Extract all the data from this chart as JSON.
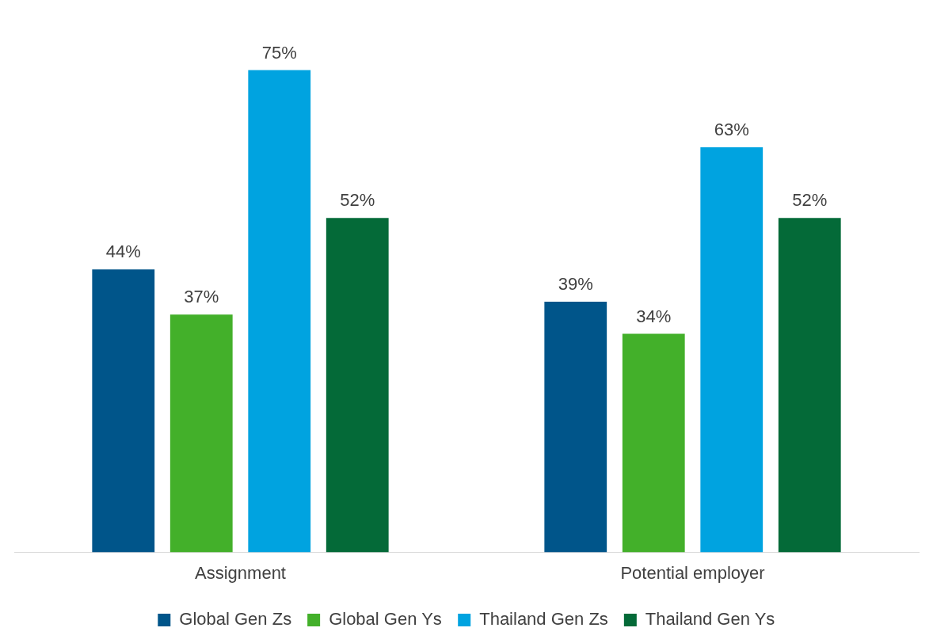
{
  "chart_data": {
    "type": "bar",
    "categories": [
      "Assignment",
      "Potential employer"
    ],
    "series": [
      {
        "name": "Global Gen Zs",
        "color": "#00558a",
        "values": [
          44,
          39
        ],
        "value_labels": [
          "44%",
          "39%"
        ]
      },
      {
        "name": "Global Gen Ys",
        "color": "#43b02a",
        "values": [
          37,
          34
        ],
        "value_labels": [
          "37%",
          "34%"
        ]
      },
      {
        "name": "Thailand Gen Zs",
        "color": "#00a3e0",
        "values": [
          75,
          63
        ],
        "value_labels": [
          "75%",
          "63%"
        ]
      },
      {
        "name": "Thailand Gen Ys",
        "color": "#046a38",
        "values": [
          52,
          52
        ],
        "value_labels": [
          "52%",
          "52%"
        ]
      }
    ],
    "legend": "bottom",
    "grid": false
  }
}
